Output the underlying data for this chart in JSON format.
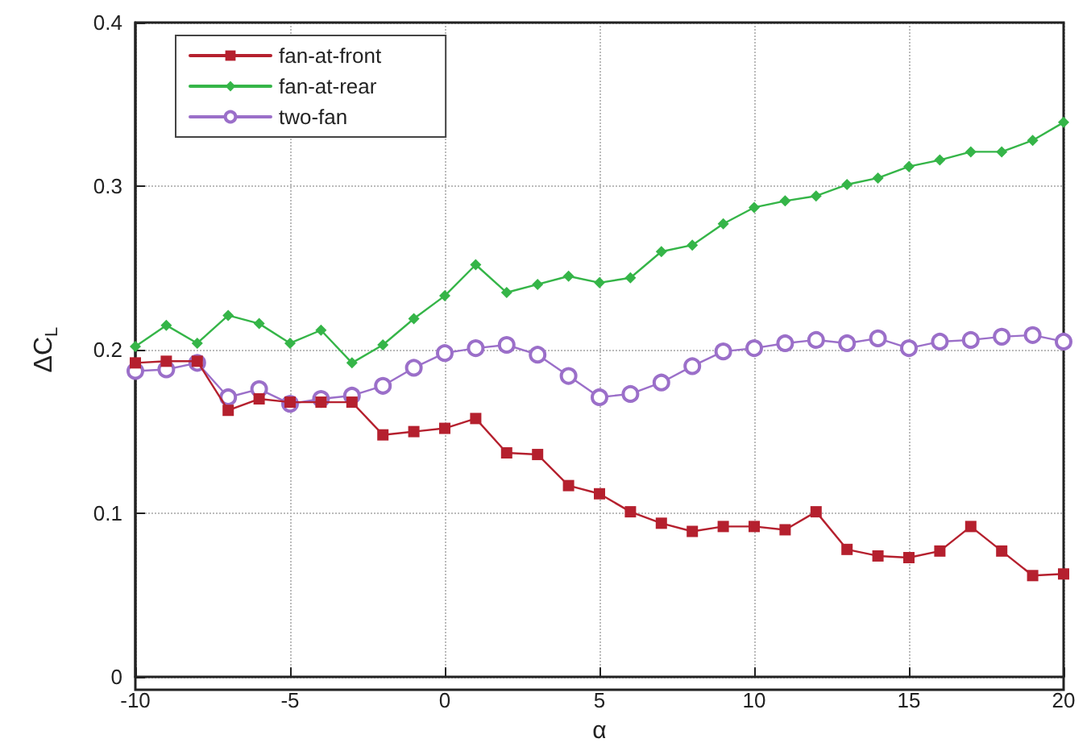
{
  "chart_data": {
    "type": "line",
    "xlabel": "α",
    "ylabel": "ΔC$_{L}$",
    "x": [
      -10,
      -9,
      -8,
      -7,
      -6,
      -5,
      -4,
      -3,
      -2,
      -1,
      0,
      1,
      2,
      3,
      4,
      5,
      6,
      7,
      8,
      9,
      10,
      11,
      12,
      13,
      14,
      15,
      16,
      17,
      18,
      19,
      20
    ],
    "series": [
      {
        "name": "fan-at-front",
        "color": "#b5202e",
        "marker": "square",
        "values": [
          0.192,
          0.193,
          0.193,
          0.163,
          0.17,
          0.168,
          0.168,
          0.168,
          0.148,
          0.15,
          0.152,
          0.158,
          0.137,
          0.136,
          0.117,
          0.112,
          0.101,
          0.094,
          0.089,
          0.092,
          0.092,
          0.09,
          0.101,
          0.078,
          0.074,
          0.073,
          0.077,
          0.092,
          0.077,
          0.062,
          0.063
        ]
      },
      {
        "name": "fan-at-rear",
        "color": "#35b548",
        "marker": "diamond",
        "values": [
          0.202,
          0.215,
          0.204,
          0.221,
          0.216,
          0.204,
          0.212,
          0.192,
          0.203,
          0.219,
          0.233,
          0.252,
          0.235,
          0.24,
          0.245,
          0.241,
          0.244,
          0.26,
          0.264,
          0.277,
          0.287,
          0.291,
          0.294,
          0.301,
          0.305,
          0.312,
          0.316,
          0.321,
          0.321,
          0.328,
          0.339
        ]
      },
      {
        "name": "two-fan",
        "color": "#9b6fc9",
        "marker": "circle",
        "values": [
          0.187,
          0.188,
          0.192,
          0.171,
          0.176,
          0.167,
          0.17,
          0.172,
          0.178,
          0.189,
          0.198,
          0.201,
          0.203,
          0.197,
          0.184,
          0.171,
          0.173,
          0.18,
          0.19,
          0.199,
          0.201,
          0.204,
          0.206,
          0.204,
          0.207,
          0.201,
          0.205,
          0.206,
          0.208,
          0.209,
          0.205
        ]
      }
    ],
    "xlim": [
      -10,
      20
    ],
    "xticks": [
      -10,
      -5,
      0,
      5,
      10,
      15,
      20
    ],
    "ylim": [
      0,
      0.4
    ],
    "yticks": [
      0,
      0.1,
      0.2,
      0.3,
      0.4
    ],
    "grid": true,
    "legend": "top left",
    "line_style": "solid"
  }
}
